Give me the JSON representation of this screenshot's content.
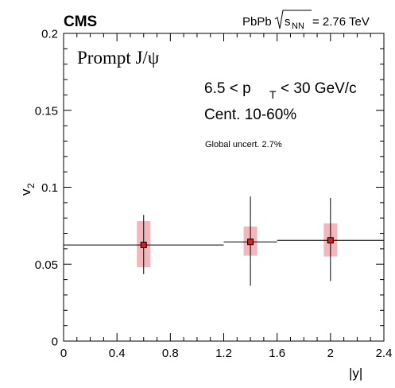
{
  "chart_data": {
    "type": "scatter",
    "experiment": "CMS",
    "collision_prefix": "PbPb",
    "collision_energy_var": "s",
    "collision_energy_sub": "NN",
    "collision_energy_value": "= 2.76 TeV",
    "title": "Prompt J/ψ",
    "pt_range_left": "6.5 < p",
    "pt_range_sub": "T",
    "pt_range_right": "< 30 GeV/c",
    "centrality": "Cent. 10-60%",
    "global_uncert": "Global uncert. 2.7%",
    "xlabel": "|y|",
    "ylabel_main": "v",
    "ylabel_sub": "2",
    "xlim": [
      0,
      2.4
    ],
    "ylim": [
      0,
      0.2
    ],
    "x_ticks": [
      "0",
      "0.4",
      "0.8",
      "1.2",
      "1.6",
      "2",
      "2.4"
    ],
    "x_tick_values": [
      0,
      0.4,
      0.8,
      1.2,
      1.6,
      2.0,
      2.4
    ],
    "y_ticks": [
      "0",
      "0.05",
      "0.1",
      "0.15",
      "0.2"
    ],
    "y_tick_values": [
      0,
      0.05,
      0.1,
      0.15,
      0.2
    ],
    "marker_color": "#d42020",
    "syst_color": "#f4b6bb",
    "points": [
      {
        "x": 0.6,
        "y": 0.0625,
        "x_low": 0.0,
        "x_high": 1.2,
        "stat_low": 0.0435,
        "stat_high": 0.082,
        "syst_low": 0.048,
        "syst_high": 0.078
      },
      {
        "x": 1.4,
        "y": 0.0645,
        "x_low": 1.2,
        "x_high": 1.6,
        "stat_low": 0.036,
        "stat_high": 0.094,
        "syst_low": 0.0555,
        "syst_high": 0.0745
      },
      {
        "x": 2.0,
        "y": 0.0655,
        "x_low": 1.6,
        "x_high": 2.4,
        "stat_low": 0.039,
        "stat_high": 0.093,
        "syst_low": 0.055,
        "syst_high": 0.0765
      }
    ]
  }
}
